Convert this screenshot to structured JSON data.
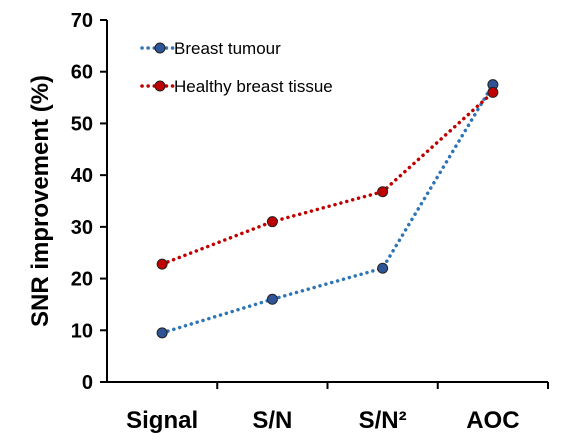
{
  "chart_data": {
    "type": "line",
    "categories": [
      "Signal",
      "S/N",
      "S/N²",
      "AOC"
    ],
    "series": [
      {
        "name": "Breast tumour",
        "values": [
          9.5,
          16,
          22,
          57.5
        ],
        "color": "#2E75B6",
        "marker_color": "#2F5597"
      },
      {
        "name": "Healthy breast tissue",
        "values": [
          22.8,
          31,
          36.8,
          56
        ],
        "color": "#C00000",
        "marker_color": "#C00000"
      }
    ],
    "xlabel": "",
    "ylabel": "SNR improvement (%)",
    "ylim": [
      0,
      70
    ],
    "yticks": [
      "0",
      "10",
      "20",
      "30",
      "40",
      "50",
      "60",
      "70"
    ],
    "legend_position": "top-left",
    "grid": false,
    "line_style": "dotted",
    "marker": "circle"
  }
}
